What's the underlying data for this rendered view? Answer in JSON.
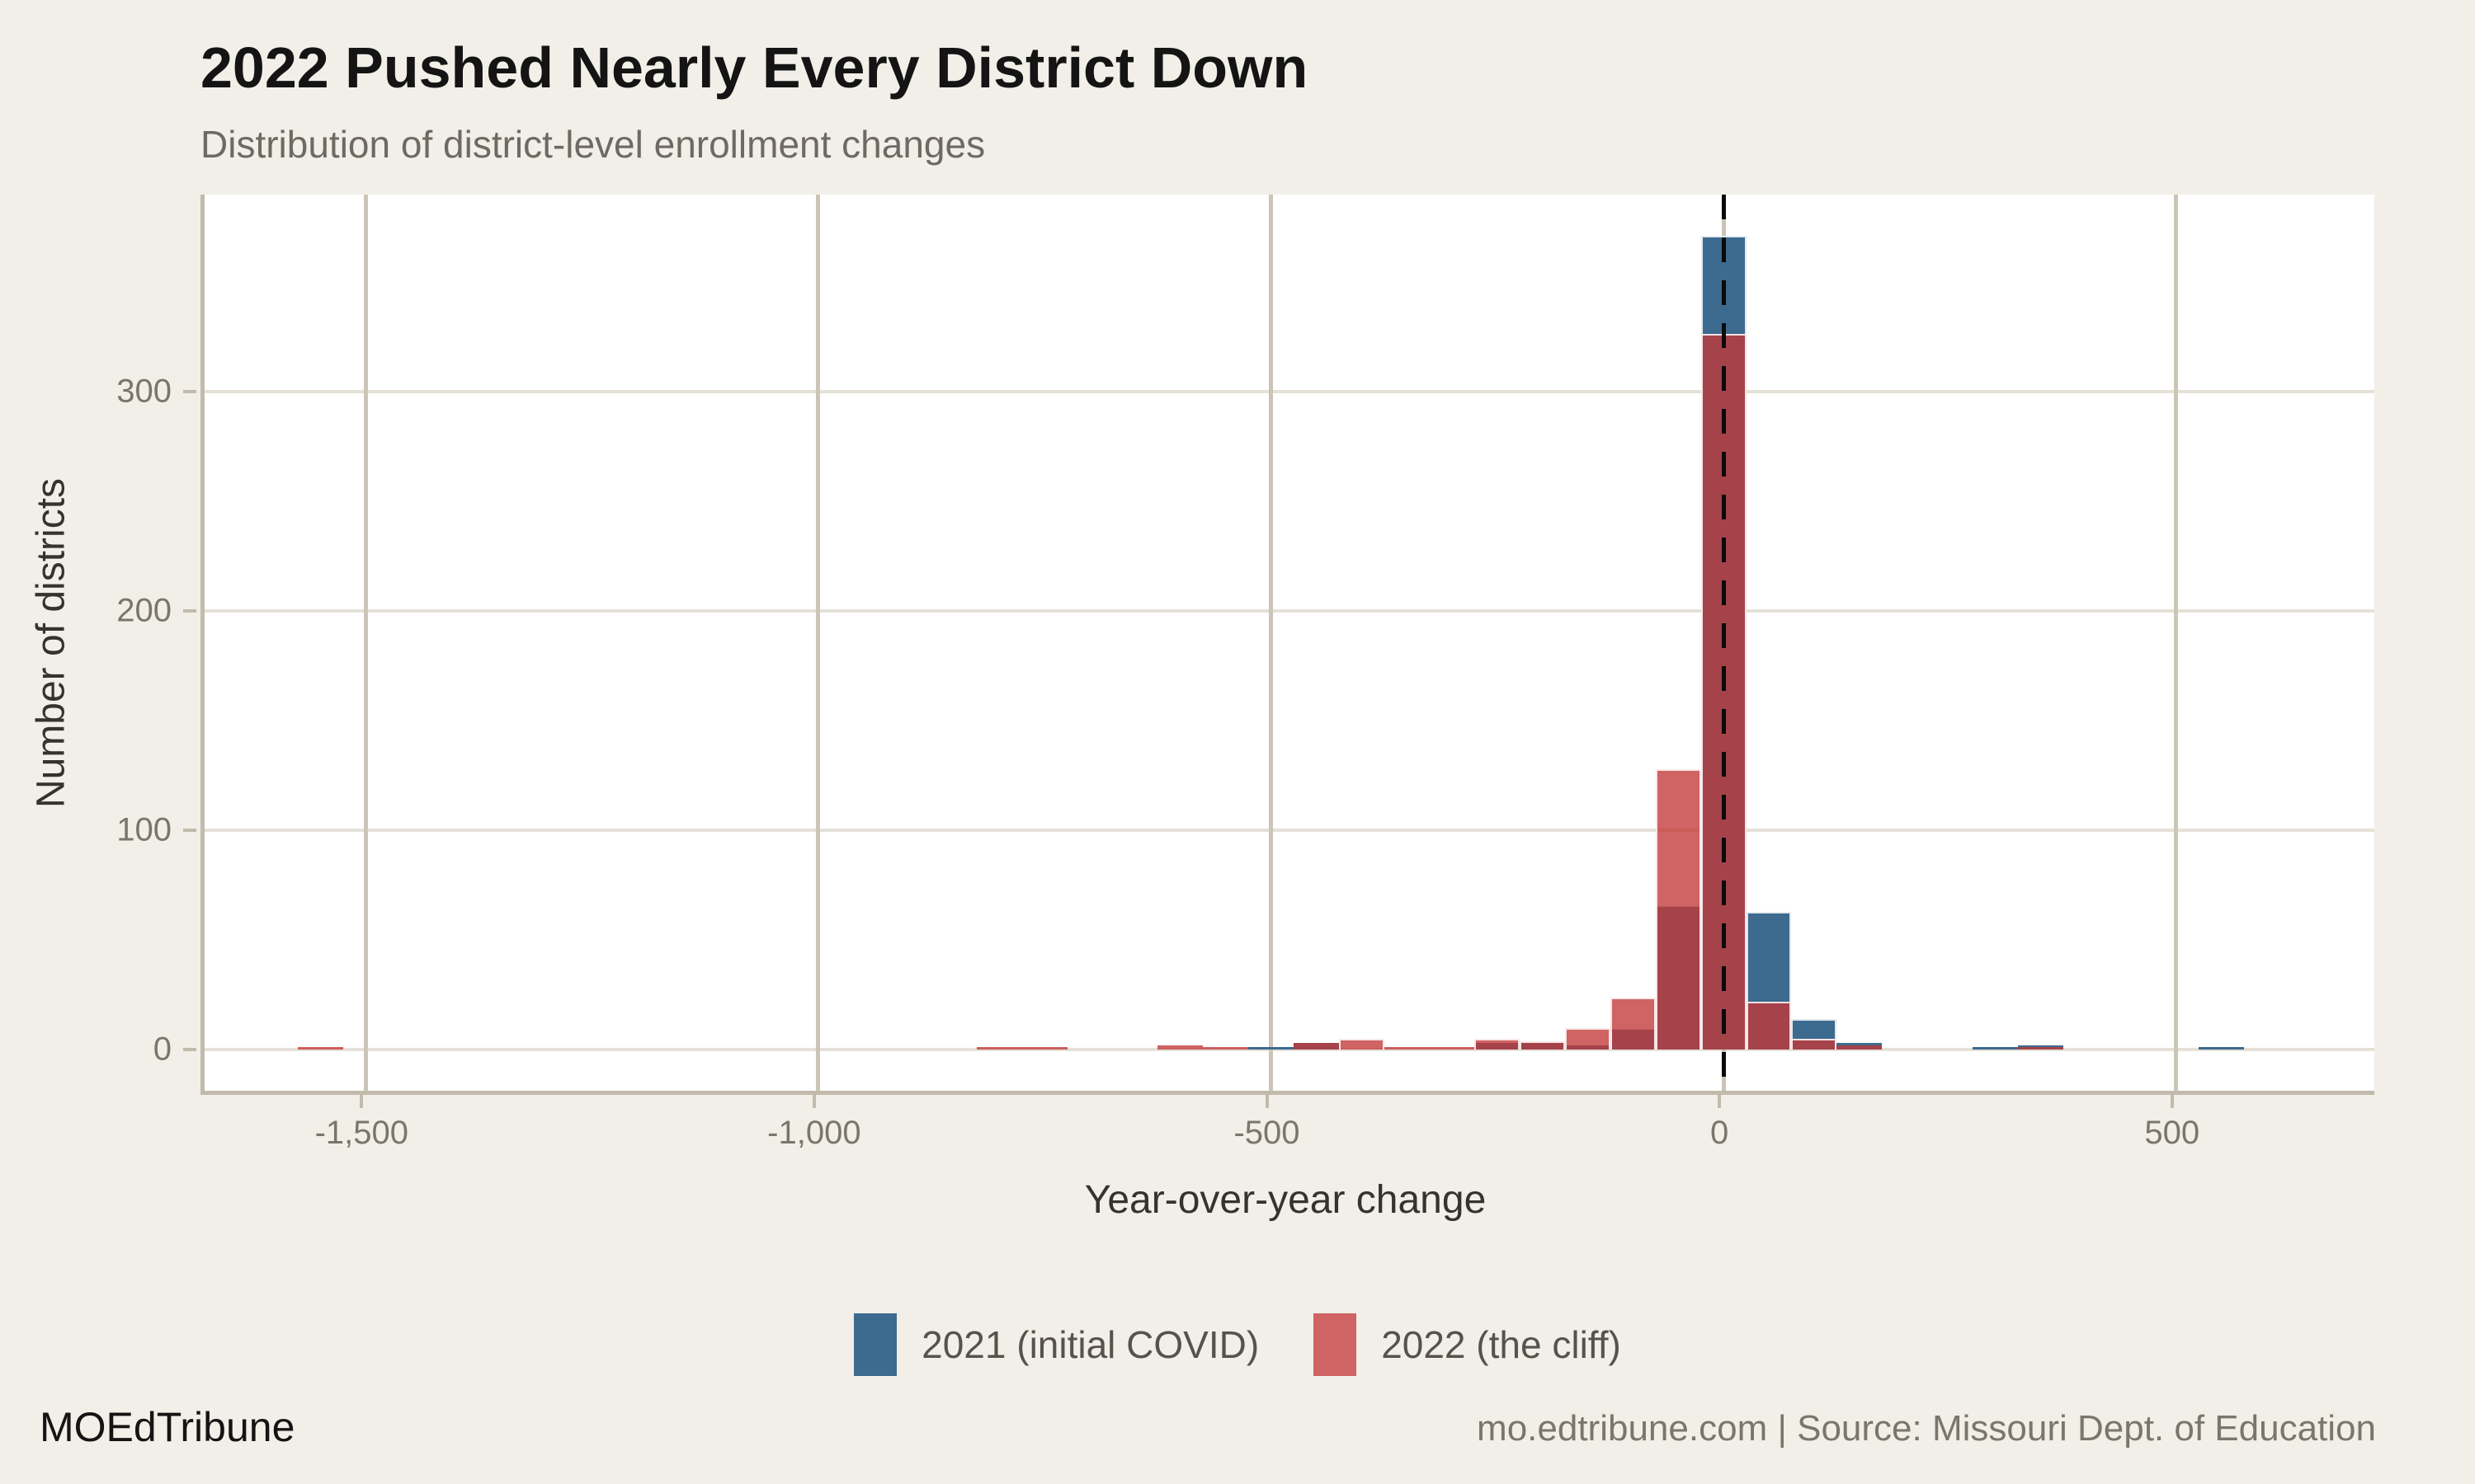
{
  "header": {
    "title": "2022 Pushed Nearly Every District Down",
    "subtitle": "Distribution of district-level enrollment changes"
  },
  "chart_data": {
    "type": "bar",
    "subtype": "overlaid-histogram",
    "title": "2022 Pushed Nearly Every District Down",
    "subtitle": "Distribution of district-level enrollment changes",
    "xlabel": "Year-over-year change",
    "ylabel": "Number of districts",
    "binwidth": 50,
    "xlim": [
      -1678,
      719
    ],
    "ylim": [
      -18.6,
      389.6
    ],
    "grid": true,
    "legend_position": "bottom",
    "reference_line_x": 0,
    "x_ticks": [
      {
        "value": -1500,
        "label": "-1,500"
      },
      {
        "value": -1000,
        "label": "-1,000"
      },
      {
        "value": -500,
        "label": "-500"
      },
      {
        "value": 0,
        "label": "0"
      },
      {
        "value": 500,
        "label": "500"
      }
    ],
    "y_ticks": [
      {
        "value": 0,
        "label": "0"
      },
      {
        "value": 100,
        "label": "100"
      },
      {
        "value": 200,
        "label": "200"
      },
      {
        "value": 300,
        "label": "300"
      }
    ],
    "series": [
      {
        "name": "2021 (initial COVID)",
        "key": "y2021",
        "color": "#3D6A8F",
        "alpha": 1.0
      },
      {
        "name": "2022 (the cliff)",
        "key": "y2022",
        "color": "#C33737",
        "alpha": 0.78
      }
    ],
    "bins": [
      {
        "center": -1550,
        "y2021": 0,
        "y2022": 1
      },
      {
        "center": -800,
        "y2021": 0,
        "y2022": 1
      },
      {
        "center": -750,
        "y2021": 0,
        "y2022": 1
      },
      {
        "center": -600,
        "y2021": 0,
        "y2022": 2
      },
      {
        "center": -550,
        "y2021": 0,
        "y2022": 1
      },
      {
        "center": -500,
        "y2021": 1,
        "y2022": 0
      },
      {
        "center": -450,
        "y2021": 3,
        "y2022": 3
      },
      {
        "center": -400,
        "y2021": 0,
        "y2022": 5
      },
      {
        "center": -350,
        "y2021": 0,
        "y2022": 1
      },
      {
        "center": -300,
        "y2021": 0,
        "y2022": 1
      },
      {
        "center": -250,
        "y2021": 3,
        "y2022": 5
      },
      {
        "center": -200,
        "y2021": 3,
        "y2022": 4
      },
      {
        "center": -150,
        "y2021": 2,
        "y2022": 10
      },
      {
        "center": -100,
        "y2021": 10,
        "y2022": 24
      },
      {
        "center": -50,
        "y2021": 66,
        "y2022": 128
      },
      {
        "center": 0,
        "y2021": 371,
        "y2022": 326
      },
      {
        "center": 50,
        "y2021": 63,
        "y2022": 22
      },
      {
        "center": 100,
        "y2021": 14,
        "y2022": 5
      },
      {
        "center": 150,
        "y2021": 3,
        "y2022": 2
      },
      {
        "center": 300,
        "y2021": 1,
        "y2022": 0
      },
      {
        "center": 350,
        "y2021": 2,
        "y2022": 1
      },
      {
        "center": 550,
        "y2021": 1,
        "y2022": 0
      }
    ]
  },
  "footer": {
    "brand": "MOEdTribune",
    "source": "mo.edtribune.com | Source: Missouri Dept. of Education"
  },
  "colors": {
    "background": "#F2EFE8",
    "panel": "#FFFFFF",
    "series_2021": "#3D6A8F",
    "series_2022_legend": "#D06363",
    "overlap": "#A5424A",
    "h_gridline": "#E5E1D7",
    "v_gridline": "#CBC5B7",
    "axis_line": "#C2BBAC",
    "tick_label": "#7B766D",
    "reference_line": "#0A0A0A"
  }
}
